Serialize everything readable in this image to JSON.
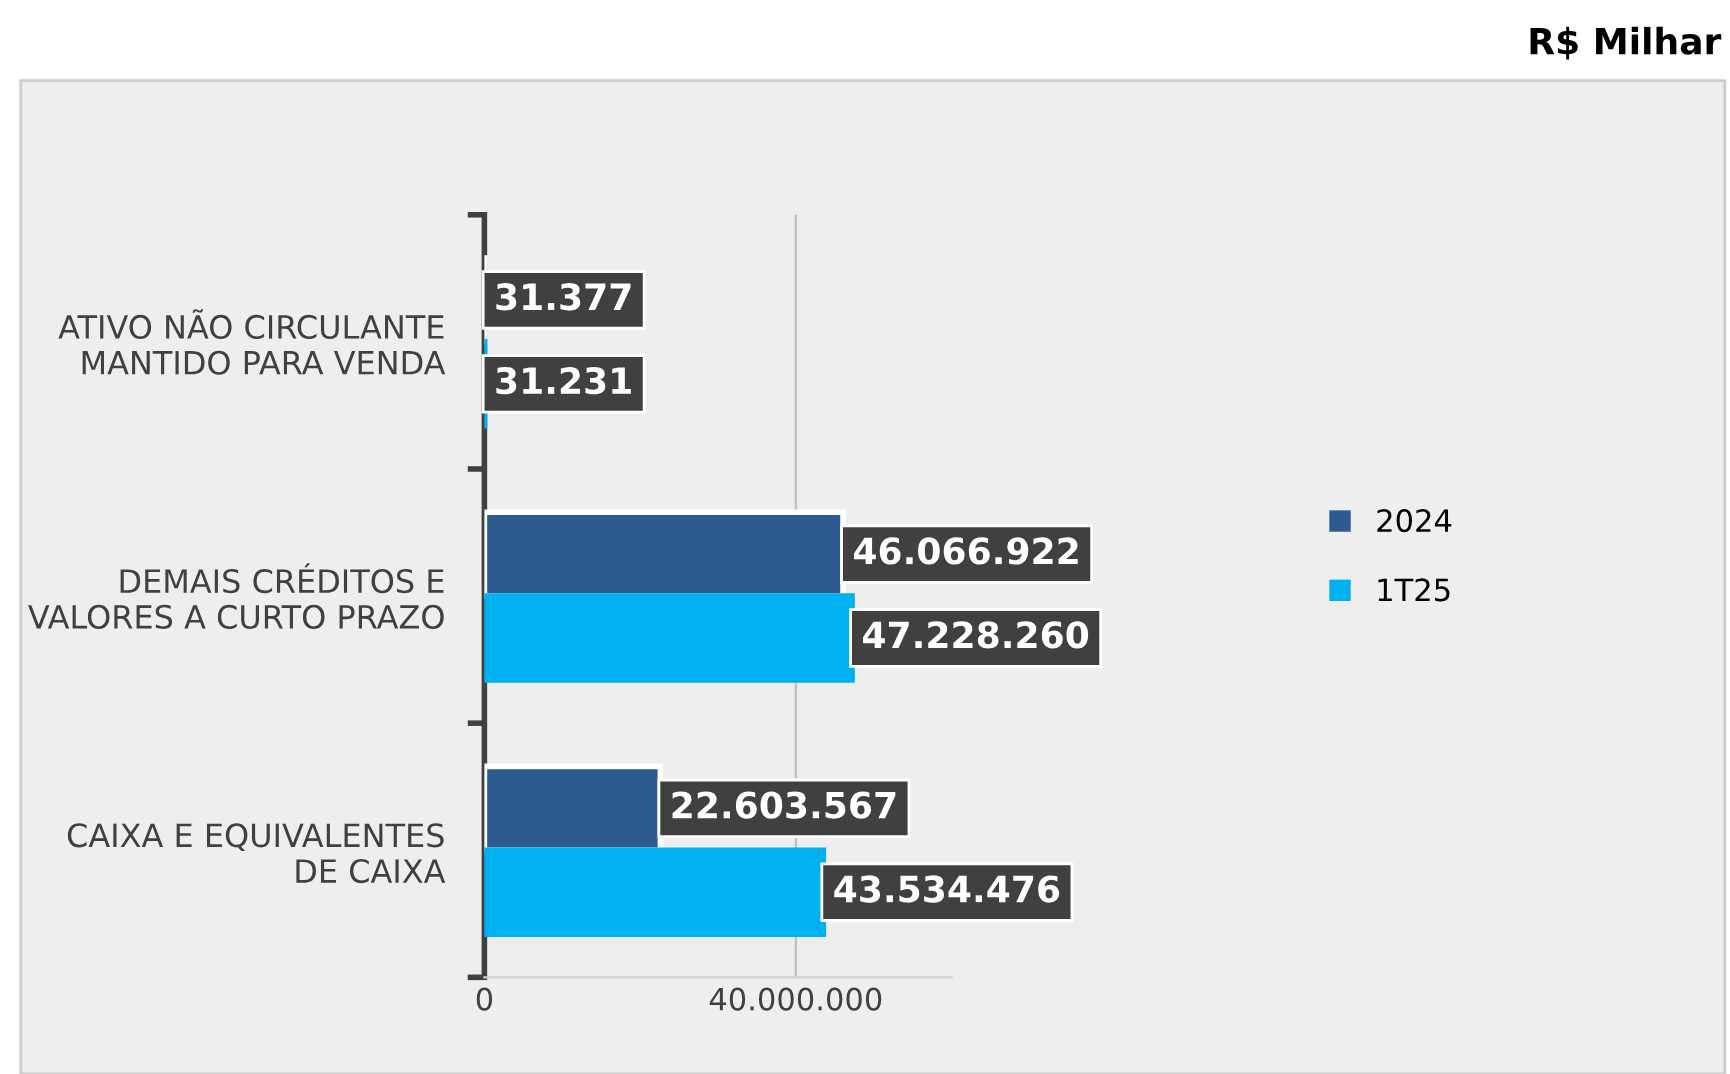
{
  "chart_data": {
    "type": "bar",
    "orientation": "horizontal",
    "categories": [
      "ATIVO NÃO CIRCULANTE MANTIDO PARA VENDA",
      "DEMAIS CRÉDITOS E VALORES A CURTO PRAZO",
      "CAIXA E EQUIVALENTES DE CAIXA"
    ],
    "series": [
      {
        "name": "2024",
        "color": "#2e5b8f",
        "values": [
          31377,
          46066922,
          22603567
        ],
        "value_labels": [
          "31.377",
          "46.066.922",
          "22.603.567"
        ]
      },
      {
        "name": "1T25",
        "color": "#00b0f0",
        "values": [
          31231,
          47228260,
          43534476
        ],
        "value_labels": [
          "31.231",
          "47.228.260",
          "43.534.476"
        ]
      }
    ],
    "xlim": [
      0,
      60000000
    ],
    "xticks": [
      0,
      {
        "value": 40000000,
        "label": "40.000.000"
      }
    ],
    "grid": "x",
    "legend": "right",
    "annotations": [
      "R$ Milhar"
    ]
  }
}
